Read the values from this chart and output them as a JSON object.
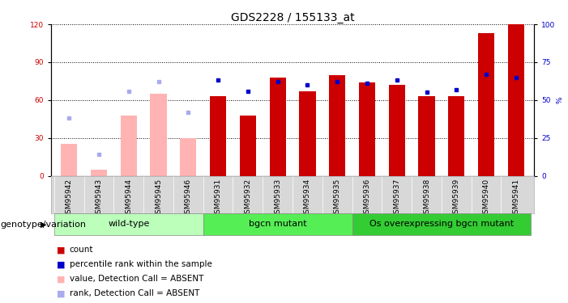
{
  "title": "GDS2228 / 155133_at",
  "samples": [
    "GSM95942",
    "GSM95943",
    "GSM95944",
    "GSM95945",
    "GSM95946",
    "GSM95931",
    "GSM95932",
    "GSM95933",
    "GSM95934",
    "GSM95935",
    "GSM95936",
    "GSM95937",
    "GSM95938",
    "GSM95939",
    "GSM95940",
    "GSM95941"
  ],
  "groups": [
    {
      "label": "wild-type",
      "start": 0,
      "end": 4,
      "color": "#bbffbb"
    },
    {
      "label": "bgcn mutant",
      "start": 5,
      "end": 9,
      "color": "#55ee55"
    },
    {
      "label": "Os overexpressing bgcn mutant",
      "start": 10,
      "end": 15,
      "color": "#33cc33"
    }
  ],
  "counts": [
    null,
    null,
    null,
    null,
    null,
    63,
    48,
    78,
    67,
    80,
    74,
    72,
    63,
    63,
    113,
    120
  ],
  "counts_absent": [
    25,
    5,
    48,
    65,
    30,
    null,
    null,
    null,
    null,
    null,
    null,
    null,
    null,
    null,
    null,
    null
  ],
  "percentile_ranks": [
    null,
    null,
    null,
    null,
    null,
    63,
    56,
    62,
    60,
    62,
    61,
    63,
    55,
    57,
    67,
    65
  ],
  "percentile_ranks_absent": [
    38,
    14,
    56,
    62,
    42,
    null,
    null,
    null,
    null,
    null,
    null,
    null,
    null,
    null,
    null,
    null
  ],
  "ylim_left": [
    0,
    120
  ],
  "ylim_right": [
    0,
    100
  ],
  "yticks_left": [
    0,
    30,
    60,
    90,
    120
  ],
  "yticks_right": [
    0,
    25,
    50,
    75,
    100
  ],
  "count_color": "#cc0000",
  "count_absent_color": "#ffb3b3",
  "rank_color": "#0000cc",
  "rank_absent_color": "#aaaaee",
  "bar_width": 0.55,
  "title_fontsize": 10,
  "tick_fontsize": 6.5,
  "group_label_fontsize": 8,
  "legend_fontsize": 7.5,
  "geno_label_fontsize": 8
}
